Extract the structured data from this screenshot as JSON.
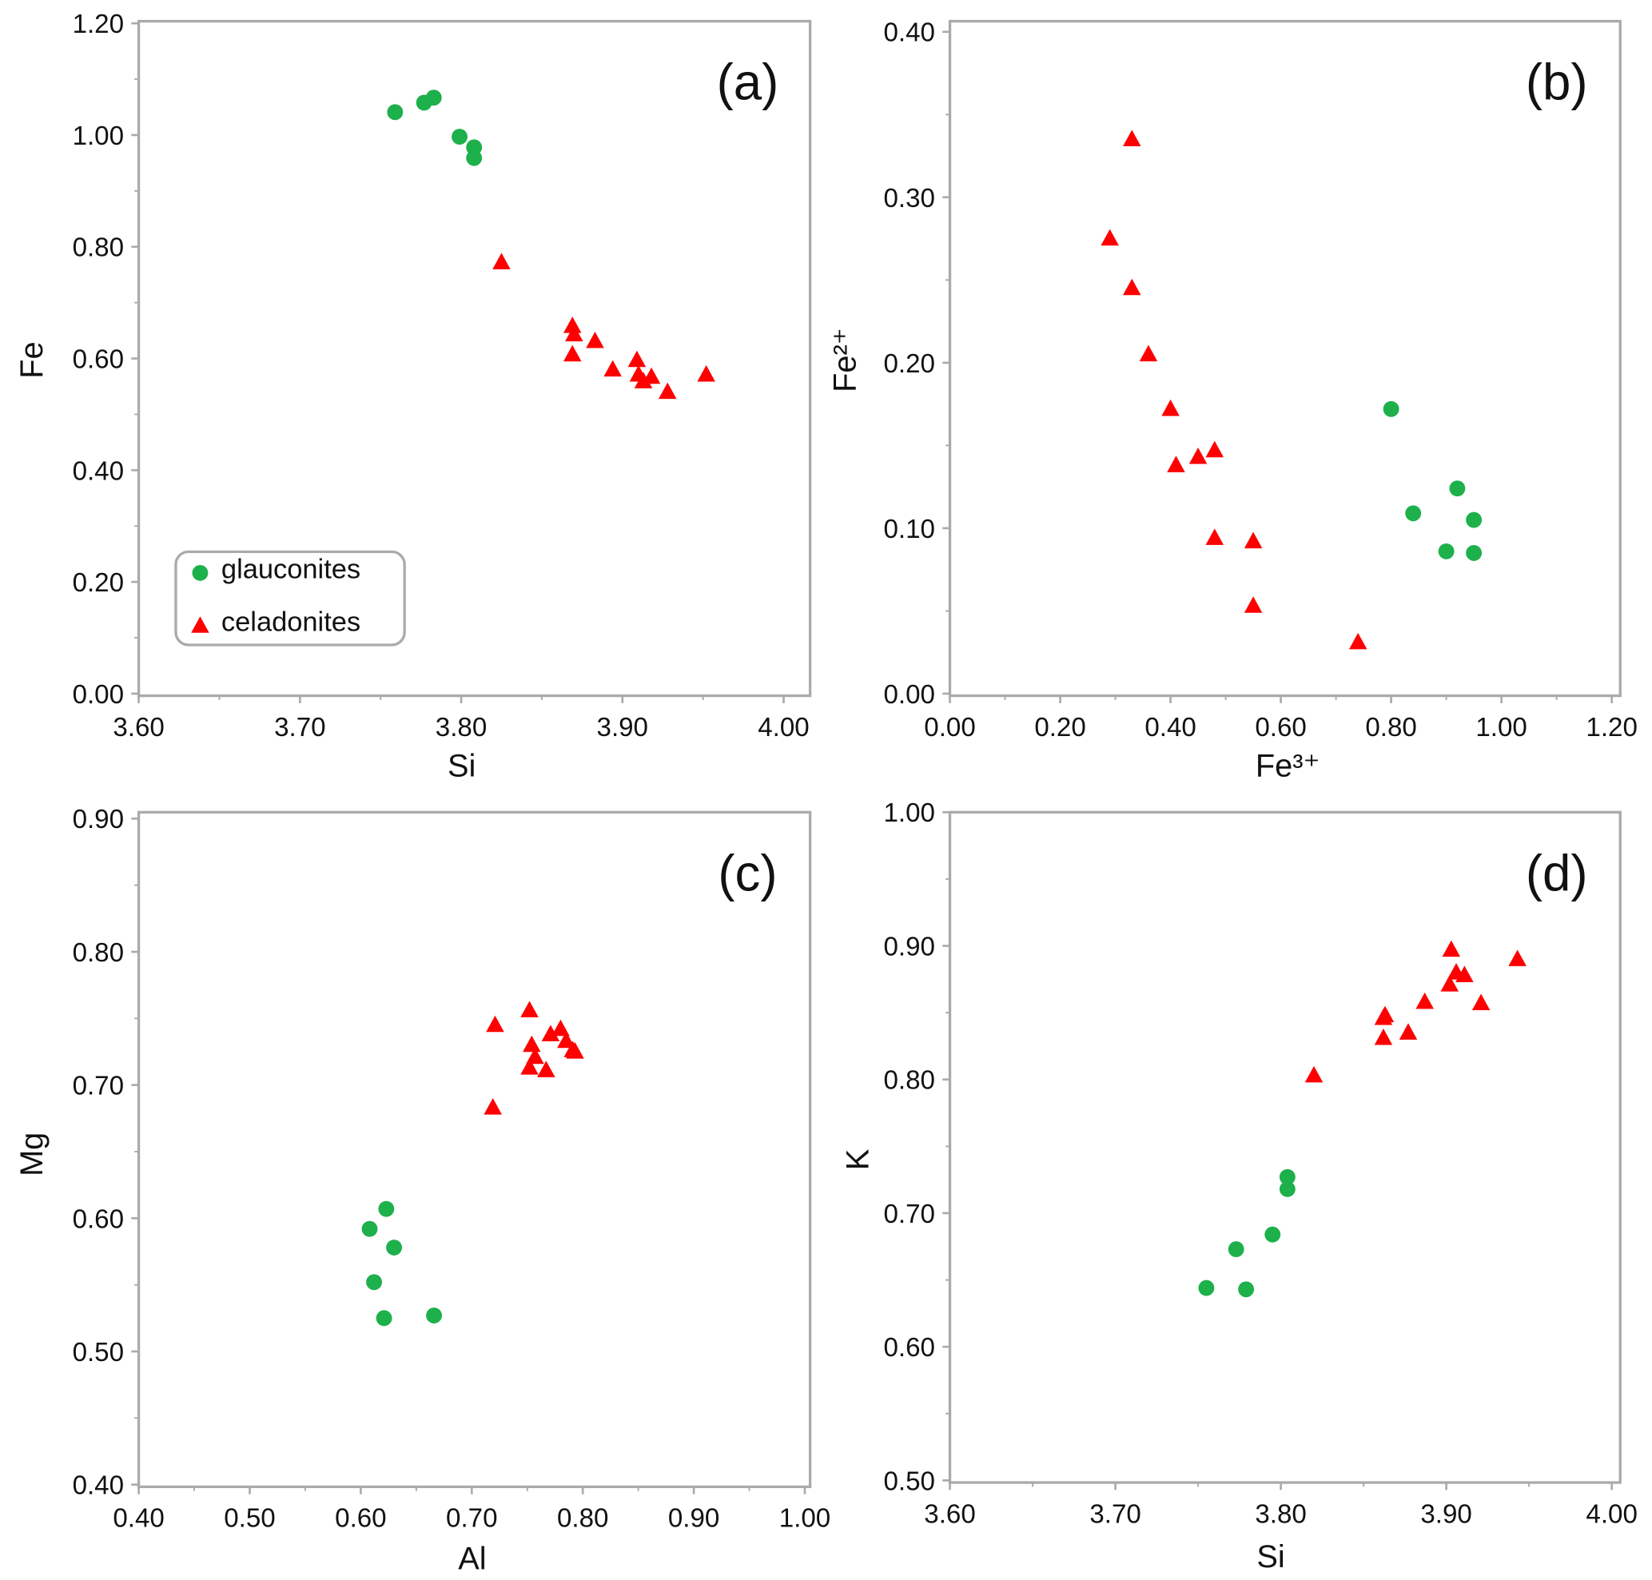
{
  "colors": {
    "glauconites": "#1db04b",
    "celadonites": "#ff0000",
    "axis": "#aaaaaa"
  },
  "legend": {
    "placement": "bottom-left of panel (a)",
    "items": [
      {
        "label": "glauconites",
        "marker": "circle"
      },
      {
        "label": "celadonites",
        "marker": "triangle"
      }
    ]
  },
  "chart_data": [
    {
      "type": "scatter",
      "panel": "(a)",
      "xlabel": "Si",
      "ylabel": "Fe",
      "xlim": [
        3.6,
        4.0
      ],
      "ylim": [
        0,
        1.2
      ],
      "xticks": [
        "3.60",
        "3.70",
        "3.80",
        "3.90",
        "4.00"
      ],
      "yticks": [
        "0.00",
        "0.20",
        "0.40",
        "0.60",
        "0.80",
        "1.00",
        "1.20"
      ],
      "series": [
        {
          "name": "glauconites",
          "x": [
            3.759,
            3.777,
            3.783,
            3.799,
            3.808,
            3.808
          ],
          "y": [
            1.041,
            1.058,
            1.067,
            0.997,
            0.978,
            0.959
          ]
        },
        {
          "name": "celadonites",
          "x": [
            3.825,
            3.869,
            3.87,
            3.869,
            3.883,
            3.894,
            3.909,
            3.91,
            3.913,
            3.918,
            3.928,
            3.952
          ],
          "y": [
            0.772,
            0.658,
            0.643,
            0.607,
            0.631,
            0.58,
            0.597,
            0.571,
            0.559,
            0.567,
            0.54,
            0.571
          ]
        }
      ]
    },
    {
      "type": "scatter",
      "panel": "(b)",
      "xlabel": "Fe³⁺",
      "ylabel": "Fe²⁺",
      "xlim": [
        0,
        1.2
      ],
      "ylim": [
        0,
        0.4
      ],
      "xticks": [
        "0.00",
        "0.20",
        "0.40",
        "0.60",
        "0.80",
        "1.00",
        "1.20"
      ],
      "yticks": [
        "0.00",
        "0.10",
        "0.20",
        "0.30",
        "0.40"
      ],
      "series": [
        {
          "name": "glauconites",
          "x": [
            0.8,
            0.92,
            0.84,
            0.95,
            0.9,
            0.95
          ],
          "y": [
            0.172,
            0.124,
            0.109,
            0.105,
            0.086,
            0.085
          ]
        },
        {
          "name": "celadonites",
          "x": [
            0.33,
            0.29,
            0.33,
            0.36,
            0.4,
            0.41,
            0.45,
            0.48,
            0.48,
            0.55,
            0.55,
            0.74
          ],
          "y": [
            0.335,
            0.275,
            0.245,
            0.205,
            0.172,
            0.138,
            0.143,
            0.147,
            0.094,
            0.092,
            0.053,
            0.031
          ]
        }
      ]
    },
    {
      "type": "scatter",
      "panel": "(c)",
      "xlabel": "Al",
      "ylabel": "Mg",
      "xlim": [
        0.4,
        1.0
      ],
      "ylim": [
        0.4,
        0.9
      ],
      "xticks": [
        "0.40",
        "0.50",
        "0.60",
        "0.70",
        "0.80",
        "0.90",
        "1.00"
      ],
      "yticks": [
        "0.40",
        "0.50",
        "0.60",
        "0.70",
        "0.80",
        "0.90"
      ],
      "series": [
        {
          "name": "glauconites",
          "x": [
            0.623,
            0.608,
            0.63,
            0.612,
            0.621,
            0.666
          ],
          "y": [
            0.607,
            0.592,
            0.578,
            0.552,
            0.525,
            0.527
          ]
        },
        {
          "name": "celadonites",
          "x": [
            0.721,
            0.752,
            0.754,
            0.757,
            0.752,
            0.767,
            0.771,
            0.78,
            0.785,
            0.791,
            0.793,
            0.719
          ],
          "y": [
            0.745,
            0.756,
            0.73,
            0.721,
            0.713,
            0.711,
            0.738,
            0.742,
            0.733,
            0.726,
            0.725,
            0.683
          ]
        }
      ]
    },
    {
      "type": "scatter",
      "panel": "(d)",
      "xlabel": "Si",
      "ylabel": "K",
      "xlim": [
        3.6,
        4.0
      ],
      "ylim": [
        0.5,
        1.0
      ],
      "xticks": [
        "3.60",
        "3.70",
        "3.80",
        "3.90",
        "4.00"
      ],
      "yticks": [
        "0.50",
        "0.60",
        "0.70",
        "0.80",
        "0.90",
        "1.00"
      ],
      "series": [
        {
          "name": "glauconites",
          "x": [
            3.755,
            3.773,
            3.779,
            3.795,
            3.804,
            3.804
          ],
          "y": [
            0.644,
            0.673,
            0.643,
            0.684,
            0.727,
            0.718
          ]
        },
        {
          "name": "celadonites",
          "x": [
            3.82,
            3.862,
            3.863,
            3.862,
            3.877,
            3.887,
            3.903,
            3.902,
            3.906,
            3.911,
            3.921,
            3.943
          ],
          "y": [
            0.803,
            0.846,
            0.848,
            0.831,
            0.835,
            0.858,
            0.897,
            0.871,
            0.88,
            0.878,
            0.857,
            0.89
          ]
        }
      ]
    }
  ]
}
